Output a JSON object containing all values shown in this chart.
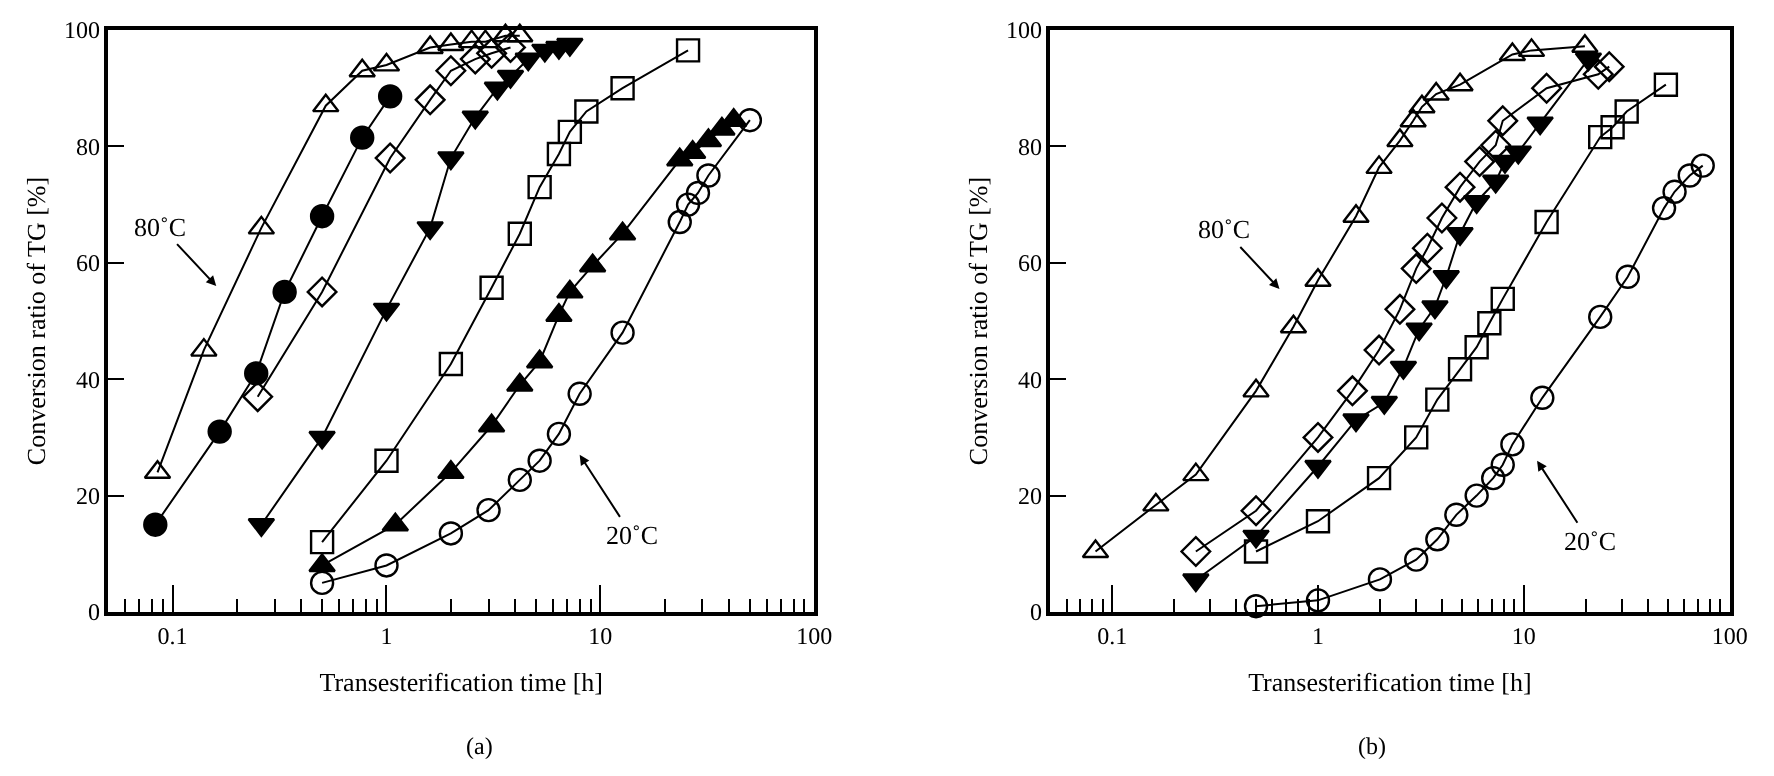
{
  "chart_data": [
    {
      "type": "line",
      "xlabel": "Transesterification time [h]",
      "ylabel": "Conversion ratio of TG [%]",
      "log": "x",
      "xlim": [
        0.05,
        100
      ],
      "ylim": [
        0,
        100
      ],
      "yticks": [
        0,
        20,
        40,
        60,
        80,
        100
      ],
      "xticks": [
        {
          "value": 0.06,
          "label": null
        },
        {
          "value": 0.07,
          "label": null
        },
        {
          "value": 0.08,
          "label": null
        },
        {
          "value": 0.09,
          "label": null
        },
        0.1,
        {
          "value": 0.2,
          "label": null
        },
        {
          "value": 0.3,
          "label": null
        },
        {
          "value": 0.4,
          "label": null
        },
        {
          "value": 0.5,
          "label": null
        },
        {
          "value": 0.6,
          "label": null
        },
        {
          "value": 0.7,
          "label": null
        },
        {
          "value": 0.8,
          "label": null
        },
        {
          "value": 0.9,
          "label": null
        },
        1,
        {
          "value": 2,
          "label": null
        },
        {
          "value": 3,
          "label": null
        },
        {
          "value": 4,
          "label": null
        },
        {
          "value": 5,
          "label": null
        },
        {
          "value": 6,
          "label": null
        },
        {
          "value": 7,
          "label": null
        },
        {
          "value": 8,
          "label": null
        },
        {
          "value": 9,
          "label": null
        },
        10,
        {
          "value": 20,
          "label": null
        },
        {
          "value": 30,
          "label": null
        },
        {
          "value": 40,
          "label": null
        },
        {
          "value": 50,
          "label": null
        },
        {
          "value": 60,
          "label": null
        },
        {
          "value": 70,
          "label": null
        },
        {
          "value": 80,
          "label": null
        },
        {
          "value": 90,
          "label": null
        },
        100
      ],
      "annotations": [
        "80˚C",
        "20˚C",
        "(a)"
      ],
      "series": [
        {
          "color": "#000000",
          "marker": "triangle-up-open",
          "x": [
            0.085,
            0.14,
            0.26,
            0.52,
            0.77,
            1,
            1.6,
            2,
            2.5,
            2.9,
            3.6,
            4.2
          ],
          "values": [
            24,
            45,
            66,
            87,
            93,
            94,
            97,
            97.5,
            98,
            98,
            99,
            99
          ]
        },
        {
          "color": "#000000",
          "marker": "circle",
          "x": [
            0.083,
            0.166,
            0.246,
            0.334,
            0.5,
            0.77,
            1.04
          ],
          "values": [
            15,
            31,
            41,
            55,
            68,
            81.5,
            88.6
          ]
        },
        {
          "color": "#000000",
          "marker": "diamond-open",
          "x": [
            0.25,
            0.5,
            1.04,
            1.6,
            2,
            2.6,
            3.1,
            3.8
          ],
          "values": [
            37,
            55,
            78,
            88,
            93,
            95,
            96,
            97
          ]
        },
        {
          "color": "#000000",
          "marker": "triangle-down",
          "x": [
            0.26,
            0.5,
            1,
            1.6,
            2,
            2.6,
            3.3,
            3.8,
            4.6,
            5.5,
            6.4,
            7.2
          ],
          "values": [
            15,
            30,
            52,
            66,
            78,
            85,
            90,
            92,
            95,
            96.5,
            97,
            97.5
          ]
        },
        {
          "color": "#000000",
          "marker": "square-open",
          "x": [
            0.5,
            1,
            2,
            3.1,
            4.2,
            5.2,
            6.4,
            7.2,
            8.6,
            12.7,
            25.7
          ],
          "values": [
            12,
            26,
            42.6,
            55.7,
            65,
            73,
            78.7,
            82.5,
            86,
            90,
            96.5
          ]
        },
        {
          "color": "#000000",
          "marker": "triangle-up",
          "x": [
            0.5,
            1.1,
            2,
            3.1,
            4.2,
            5.2,
            6.4,
            7.2,
            9.2,
            12.7,
            23.5,
            27,
            32,
            37,
            42
          ],
          "values": [
            8,
            15,
            24,
            32,
            39,
            43,
            51,
            55,
            59.5,
            65,
            77.7,
            79,
            81,
            83,
            84.5
          ]
        },
        {
          "color": "#000000",
          "marker": "circle-open",
          "x": [
            0.5,
            1,
            2,
            3,
            4.2,
            5.2,
            6.4,
            8,
            12.7,
            23.5,
            25.7,
            28.6,
            32,
            50
          ],
          "values": [
            5,
            8,
            13.5,
            17.5,
            22.7,
            26,
            30.6,
            37.5,
            48,
            67,
            70,
            72,
            75,
            84.5
          ]
        }
      ]
    },
    {
      "type": "line",
      "xlabel": "Transesterification time [h]",
      "ylabel": "Conversion ratio of TG [%]",
      "log": "x",
      "xlim": [
        0.05,
        100
      ],
      "ylim": [
        0,
        100
      ],
      "yticks": [
        0,
        20,
        40,
        60,
        80,
        100
      ],
      "xticks": [
        {
          "value": 0.06,
          "label": null
        },
        {
          "value": 0.07,
          "label": null
        },
        {
          "value": 0.08,
          "label": null
        },
        {
          "value": 0.09,
          "label": null
        },
        0.1,
        {
          "value": 0.2,
          "label": null
        },
        {
          "value": 0.3,
          "label": null
        },
        {
          "value": 0.4,
          "label": null
        },
        {
          "value": 0.5,
          "label": null
        },
        {
          "value": 0.6,
          "label": null
        },
        {
          "value": 0.7,
          "label": null
        },
        {
          "value": 0.8,
          "label": null
        },
        {
          "value": 0.9,
          "label": null
        },
        1,
        {
          "value": 2,
          "label": null
        },
        {
          "value": 3,
          "label": null
        },
        {
          "value": 4,
          "label": null
        },
        {
          "value": 5,
          "label": null
        },
        {
          "value": 6,
          "label": null
        },
        {
          "value": 7,
          "label": null
        },
        {
          "value": 8,
          "label": null
        },
        {
          "value": 9,
          "label": null
        },
        10,
        {
          "value": 20,
          "label": null
        },
        {
          "value": 30,
          "label": null
        },
        {
          "value": 40,
          "label": null
        },
        {
          "value": 50,
          "label": null
        },
        {
          "value": 60,
          "label": null
        },
        {
          "value": 70,
          "label": null
        },
        {
          "value": 80,
          "label": null
        },
        {
          "value": 90,
          "label": null
        },
        100
      ],
      "annotations": [
        "80˚C",
        "20˚C",
        "(b)"
      ],
      "series": [
        {
          "color": "#000000",
          "marker": "triangle-up-open",
          "x": [
            0.083,
            0.163,
            0.255,
            0.5,
            0.76,
            1,
            1.53,
            1.98,
            2.5,
            2.9,
            3.2,
            3.75,
            4.9,
            8.8,
            10.9,
            19.8
          ],
          "values": [
            10.4,
            18.4,
            23.6,
            38,
            49,
            57,
            68,
            76.4,
            81,
            84.4,
            86.8,
            89,
            90.6,
            95.8,
            96.5,
            97.2
          ]
        },
        {
          "color": "#000000",
          "marker": "diamond-open",
          "x": [
            0.255,
            0.5,
            1,
            1.47,
            1.98,
            2.5,
            3,
            3.4,
            4,
            4.9,
            6.1,
            7.3,
            7.9,
            12.9,
            23,
            26
          ],
          "values": [
            10.4,
            17.4,
            30,
            38,
            45,
            52,
            59,
            62.5,
            67.7,
            73,
            77.4,
            80.2,
            84.4,
            90,
            92.4,
            93.7
          ]
        },
        {
          "color": "#000000",
          "marker": "triangle-down",
          "x": [
            0.255,
            0.5,
            1,
            1.53,
            2.1,
            2.6,
            3.1,
            3.7,
            4.2,
            4.9,
            5.9,
            7.3,
            8.1,
            9.4,
            12,
            20.6
          ],
          "values": [
            5.5,
            13,
            25,
            33,
            36,
            42,
            48.6,
            52.4,
            57.6,
            65,
            70.5,
            74,
            77.4,
            79,
            84,
            95
          ]
        },
        {
          "color": "#000000",
          "marker": "square-open",
          "x": [
            0.5,
            1,
            1.98,
            3,
            3.8,
            4.9,
            5.9,
            6.8,
            7.9,
            12.9,
            23.5,
            27,
            31.6,
            49
          ],
          "values": [
            10.4,
            15.6,
            23,
            30,
            36.5,
            41.7,
            45.5,
            49.6,
            53.8,
            67,
            81.6,
            83.3,
            86,
            90.6
          ]
        },
        {
          "color": "#000000",
          "marker": "circle-open",
          "x": [
            0.5,
            1,
            2,
            3,
            3.8,
            4.7,
            5.9,
            7.1,
            7.9,
            8.8,
            12.3,
            23.5,
            32,
            48,
            54,
            64,
            74
          ],
          "values": [
            1,
            2,
            5.6,
            9,
            12.5,
            16.7,
            20,
            23,
            25.3,
            28.8,
            36.8,
            50.7,
            57.6,
            69.4,
            72.2,
            75,
            76.7
          ]
        }
      ]
    }
  ]
}
